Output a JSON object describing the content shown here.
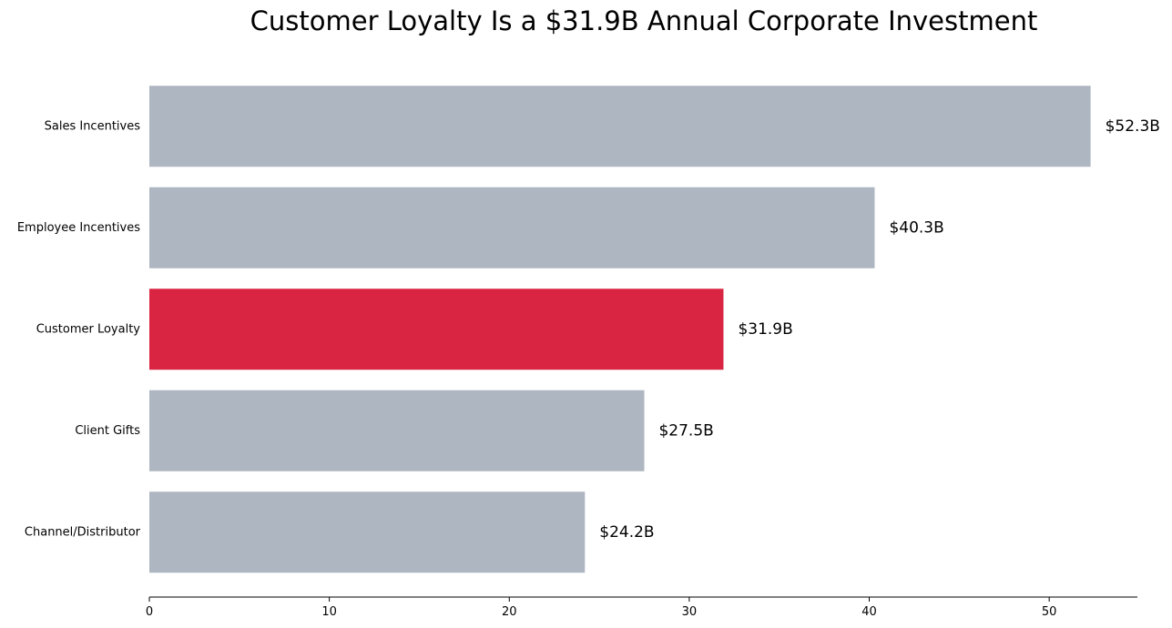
{
  "chart_data": {
    "type": "bar",
    "orientation": "horizontal",
    "title": "Customer Loyalty Is a $31.9B Annual Corporate Investment",
    "xlabel": "",
    "ylabel": "",
    "categories": [
      "Sales Incentives",
      "Employee Incentives",
      "Customer Loyalty",
      "Client Gifts",
      "Channel/Distributor"
    ],
    "values": [
      52.3,
      40.3,
      31.9,
      27.5,
      24.2
    ],
    "value_labels": [
      "$52.3B",
      "$40.3B",
      "$31.9B",
      "$27.5B",
      "$24.2B"
    ],
    "highlight_category": "Customer Loyalty",
    "colors": {
      "default": "#aeb6c1",
      "highlight": "#d92541",
      "axis": "#000000"
    },
    "xlim": [
      0,
      54.9
    ],
    "xticks": [
      0,
      10,
      20,
      30,
      40,
      50
    ],
    "grid": false,
    "legend": "none"
  }
}
